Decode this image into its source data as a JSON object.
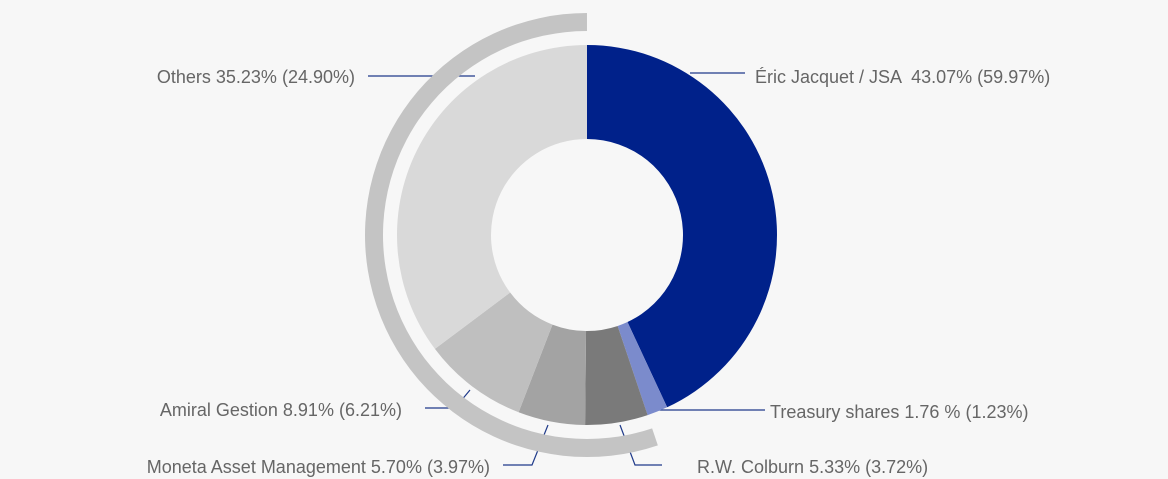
{
  "chart_data": {
    "type": "donut",
    "categories": [
      "Éric Jacquet / JSA",
      "Treasury shares",
      "R.W. Colburn",
      "Moneta Asset Management",
      "Amiral Gestion",
      "Others"
    ],
    "values": [
      43.07,
      1.76,
      5.33,
      5.7,
      8.91,
      35.23
    ],
    "value_labels": [
      "43.07%",
      "1.76 %",
      "5.33%",
      "5.70%",
      "8.91%",
      "35.23%"
    ],
    "secondary_values": [
      59.97,
      1.23,
      3.72,
      3.97,
      6.21,
      24.9
    ],
    "secondary_value_labels": [
      "(59.97%)",
      "(1.23%)",
      "(3.72%)",
      "(3.97%)",
      "(6.21%)",
      "(24.90%)"
    ],
    "colors": [
      "#00218a",
      "#7b8bcc",
      "#7a7a7a",
      "#a3a3a3",
      "#bfbfbf",
      "#d9d9d9"
    ]
  }
}
